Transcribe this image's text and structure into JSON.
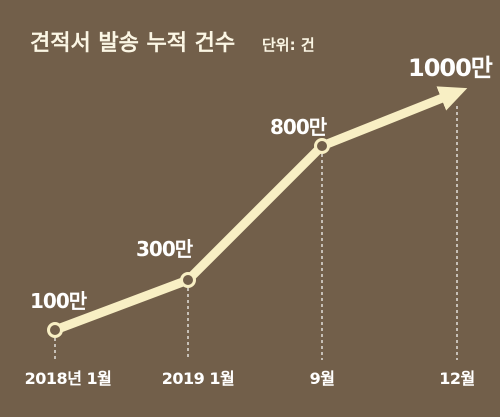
{
  "chart_data": {
    "type": "line",
    "title": "견적서 발송 누적 건수",
    "unit_label": "단위: 건",
    "x": [
      "2018년 1월",
      "2019 1월",
      "9월",
      "12월"
    ],
    "data_labels": [
      "100만",
      "300만",
      "800만",
      "1000만"
    ],
    "values": [
      1000000,
      3000000,
      8000000,
      10000000
    ],
    "ylim": [
      0,
      10000000
    ],
    "grid": false,
    "legend": "none",
    "colors": {
      "background": "#725f4a",
      "line": "#f8efc4",
      "text": "#ffffff"
    }
  }
}
